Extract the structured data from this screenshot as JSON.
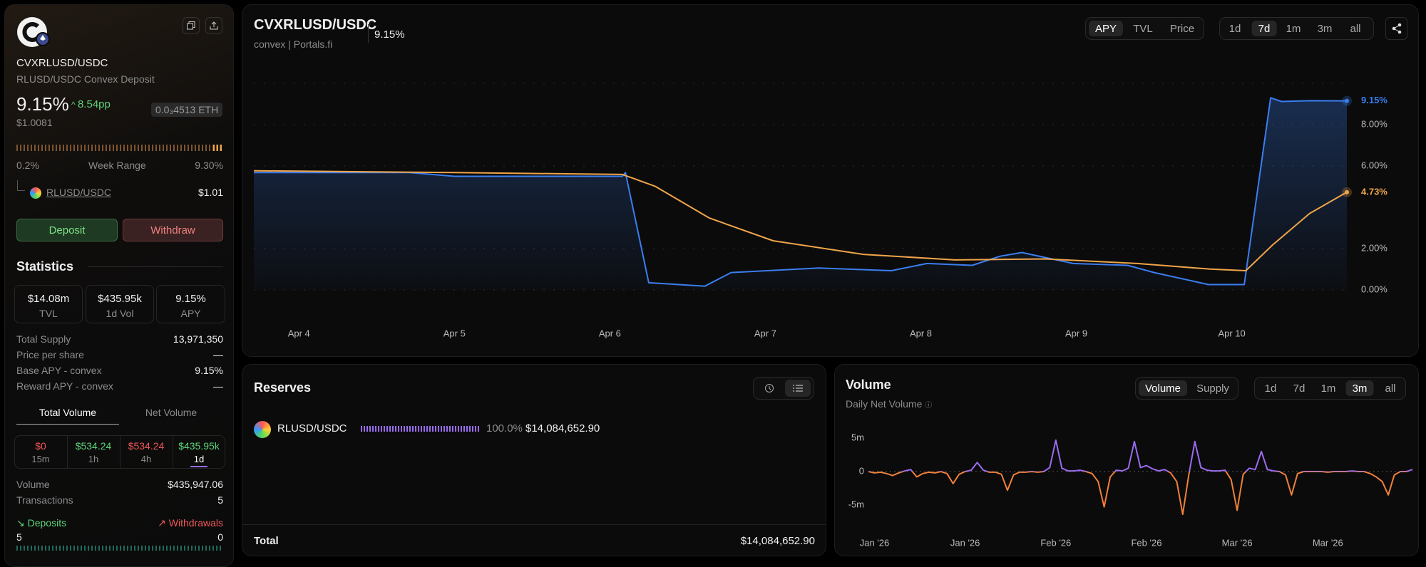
{
  "sidebar": {
    "name": "CVXRLUSD/USDC",
    "description": "RLUSD/USDC Convex Deposit",
    "apy": "9.15%",
    "apy_change": "8.54pp",
    "price": "$1.0081",
    "eth_price": "0.0₃4513 ETH",
    "week_range": {
      "low": "0.2%",
      "label": "Week Range",
      "high": "9.30%"
    },
    "underlying": {
      "name": "RLUSD/USDC",
      "price": "$1.01"
    },
    "actions": [
      "Deposit",
      "Withdraw"
    ],
    "statistics": {
      "title": "Statistics",
      "cards": [
        {
          "value": "$14.08m",
          "label": "TVL"
        },
        {
          "value": "$435.95k",
          "label": "1d Vol"
        },
        {
          "value": "9.15%",
          "label": "APY"
        }
      ],
      "rows": [
        {
          "label": "Total Supply",
          "value": "13,971,350"
        },
        {
          "label": "Price per share",
          "value": "—"
        },
        {
          "label": "Base APY - convex",
          "value": "9.15%"
        },
        {
          "label": "Reward APY - convex",
          "value": "—"
        }
      ]
    },
    "volume": {
      "tabs": [
        "Total Volume",
        "Net Volume"
      ],
      "active_tab": 0,
      "cells": [
        {
          "value": "$0",
          "label": "15m",
          "color": "#f0575a"
        },
        {
          "value": "$534.24",
          "label": "1h",
          "color": "#5fd37a"
        },
        {
          "value": "$534.24",
          "label": "4h",
          "color": "#f0575a"
        },
        {
          "value": "$435.95k",
          "label": "1d",
          "color": "#5fd37a"
        }
      ],
      "active_cell": 3,
      "rows": [
        {
          "label": "Volume",
          "value": "$435,947.06"
        },
        {
          "label": "Transactions",
          "value": "5"
        }
      ],
      "deposits": {
        "label": "Deposits",
        "value": "5"
      },
      "withdrawals": {
        "label": "Withdrawals",
        "value": "0"
      }
    }
  },
  "header": {
    "title": "CVXRLUSD/USDC",
    "subtitle": "convex | Portals.fi",
    "apy": "9.15%",
    "metrics": [
      "APY",
      "TVL",
      "Price"
    ],
    "active_metric": 0,
    "periods": [
      "1d",
      "7d",
      "1m",
      "3m",
      "all"
    ],
    "active_period": 1
  },
  "reserves": {
    "title": "Reserves",
    "rows": [
      {
        "name": "RLUSD/USDC",
        "share": "100.0%",
        "amount": "$14,084,652.90"
      }
    ],
    "total_label": "Total",
    "total": "$14,084,652.90"
  },
  "volume_panel": {
    "title": "Volume",
    "subtitle": "Daily Net Volume",
    "modes": [
      "Volume",
      "Supply"
    ],
    "active_mode": 0,
    "periods": [
      "1d",
      "7d",
      "1m",
      "3m",
      "all"
    ],
    "active_period": 3
  },
  "chart_data": [
    {
      "type": "line",
      "xlim": [
        3.71,
        10.74
      ],
      "xticks": [
        {
          "value": 4,
          "label": "Apr 4"
        },
        {
          "value": 5,
          "label": "Apr 5"
        },
        {
          "value": 6,
          "label": "Apr 6"
        },
        {
          "value": 7,
          "label": "Apr 7"
        },
        {
          "value": 8,
          "label": "Apr 8"
        },
        {
          "value": 9,
          "label": "Apr 9"
        },
        {
          "value": 10,
          "label": "Apr 10"
        }
      ],
      "ylim": [
        0,
        10
      ],
      "yticks": [
        {
          "value": 0,
          "label": "0.00%"
        },
        {
          "value": 2,
          "label": "2.00%"
        },
        {
          "value": 6,
          "label": "6.00%"
        },
        {
          "value": 8,
          "label": "8.00%"
        }
      ],
      "grid": true,
      "series": [
        {
          "color": "#3b7ef0",
          "fill": true,
          "x": [
            3.71,
            4.71,
            5.0,
            6.08,
            6.1,
            6.25,
            6.61,
            6.78,
            7.34,
            7.81,
            8.04,
            8.33,
            8.51,
            8.65,
            8.98,
            9.33,
            9.5,
            9.85,
            10.08,
            10.25,
            10.32,
            10.5,
            10.74
          ],
          "values": [
            5.68,
            5.68,
            5.5,
            5.5,
            5.68,
            0.35,
            0.18,
            0.84,
            1.06,
            0.93,
            1.28,
            1.19,
            1.63,
            1.81,
            1.28,
            1.19,
            0.84,
            0.26,
            0.26,
            9.3,
            9.12,
            9.16,
            9.15
          ]
        },
        {
          "color": "#f0a54a",
          "x": [
            3.71,
            5.0,
            6.08,
            6.29,
            6.64,
            7.05,
            7.63,
            8.22,
            8.8,
            9.39,
            9.86,
            10.09,
            10.26,
            10.5,
            10.74
          ],
          "values": [
            5.77,
            5.68,
            5.59,
            5.02,
            3.48,
            2.38,
            1.72,
            1.45,
            1.5,
            1.28,
            1.01,
            0.93,
            2.16,
            3.7,
            4.73
          ]
        }
      ],
      "annotations": [
        {
          "value": 9.15,
          "label": "9.15%",
          "color": "#3b7ef0"
        },
        {
          "value": 4.73,
          "label": "4.73%",
          "color": "#f0a54a"
        }
      ]
    },
    {
      "type": "line",
      "xlim": [
        0,
        90
      ],
      "xticks": [
        {
          "value": 1,
          "label": "Jan '26"
        },
        {
          "value": 16,
          "label": "Jan '26"
        },
        {
          "value": 31,
          "label": "Feb '26"
        },
        {
          "value": 46,
          "label": "Feb '26"
        },
        {
          "value": 61,
          "label": "Mar '26"
        },
        {
          "value": 76,
          "label": "Mar '26"
        }
      ],
      "ylim": [
        -6500000,
        6500000
      ],
      "yticks": [
        {
          "value": 5000000,
          "label": "5m"
        },
        0,
        {
          "value": -5000000,
          "label": "-5m"
        }
      ],
      "zero_line": true,
      "series": [
        {
          "color": "#9b6cf0",
          "negative_color": "#f0803a",
          "values": [
            0,
            -200000,
            -100000,
            -300000,
            -600000,
            -200000,
            100000,
            300000,
            -800000,
            -300000,
            -100000,
            -200000,
            0,
            -300000,
            -1800000,
            -400000,
            0,
            200000,
            1350000,
            200000,
            -100000,
            -100000,
            -400000,
            -2800000,
            -500000,
            -100000,
            -100000,
            0,
            -100000,
            0,
            600000,
            4700000,
            500000,
            100000,
            100000,
            200000,
            0,
            -300000,
            -1500000,
            -5300000,
            -800000,
            200000,
            100000,
            500000,
            4500000,
            600000,
            900000,
            400000,
            100000,
            300000,
            -200000,
            -1500000,
            -6400000,
            -500000,
            4500000,
            600000,
            200000,
            100000,
            100000,
            200000,
            -1200000,
            -5800000,
            -400000,
            500000,
            300000,
            3000000,
            300000,
            100000,
            0,
            -500000,
            -3500000,
            -300000,
            0,
            0,
            0,
            0,
            -100000,
            0,
            0,
            0,
            100000,
            0,
            0,
            -300000,
            -800000,
            -1500000,
            -3500000,
            -500000,
            0,
            0,
            300000
          ]
        }
      ]
    }
  ]
}
